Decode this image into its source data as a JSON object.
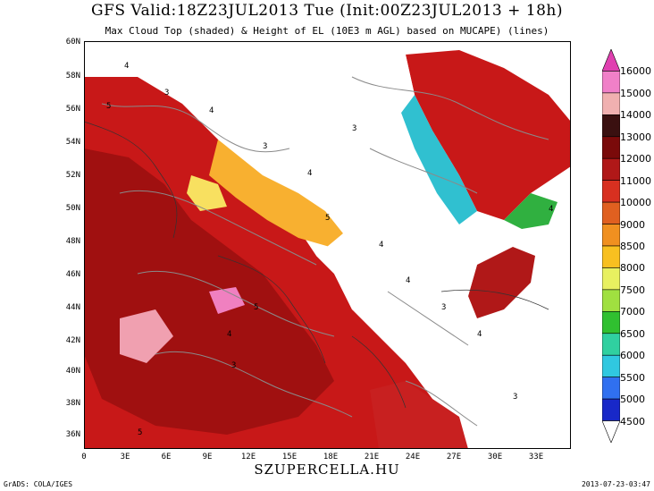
{
  "title": "GFS Valid:18Z23JUL2013 Tue (Init:00Z23JUL2013 + 18h)",
  "subtitle": "Max Cloud Top (shaded) & Height of EL (10E3 m AGL) based on MUCAPE) (lines)",
  "lat_labels": [
    "60N",
    "58N",
    "56N",
    "54N",
    "52N",
    "50N",
    "48N",
    "46N",
    "44N",
    "42N",
    "40N",
    "38N",
    "36N"
  ],
  "lon_labels": [
    "0",
    "3E",
    "6E",
    "9E",
    "12E",
    "15E",
    "18E",
    "21E",
    "24E",
    "27E",
    "30E",
    "33E"
  ],
  "colorbar": {
    "labels": [
      "16000",
      "15000",
      "14000",
      "13000",
      "12000",
      "11000",
      "10000",
      "9000",
      "8500",
      "8000",
      "7500",
      "7000",
      "6500",
      "6000",
      "5500",
      "5000",
      "4500"
    ],
    "colors": [
      "#e040b0",
      "#f080c8",
      "#f0b0b0",
      "#3a1010",
      "#7a0a0a",
      "#b01818",
      "#d83020",
      "#e06020",
      "#f09020",
      "#f8c020",
      "#e8f060",
      "#a0e040",
      "#30c030",
      "#30d0a0",
      "#30c8e0",
      "#3070f0",
      "#1828c8"
    ]
  },
  "contour_labels": [
    "4",
    "3",
    "5",
    "4",
    "3",
    "4",
    "5",
    "3",
    "4",
    "4",
    "3",
    "5",
    "4",
    "3",
    "4",
    "5",
    "3",
    "4"
  ],
  "site": "SZUPERCELLA.HU",
  "footer_left": "GrADS: COLA/IGES",
  "footer_right": "2013-07-23-03:47"
}
